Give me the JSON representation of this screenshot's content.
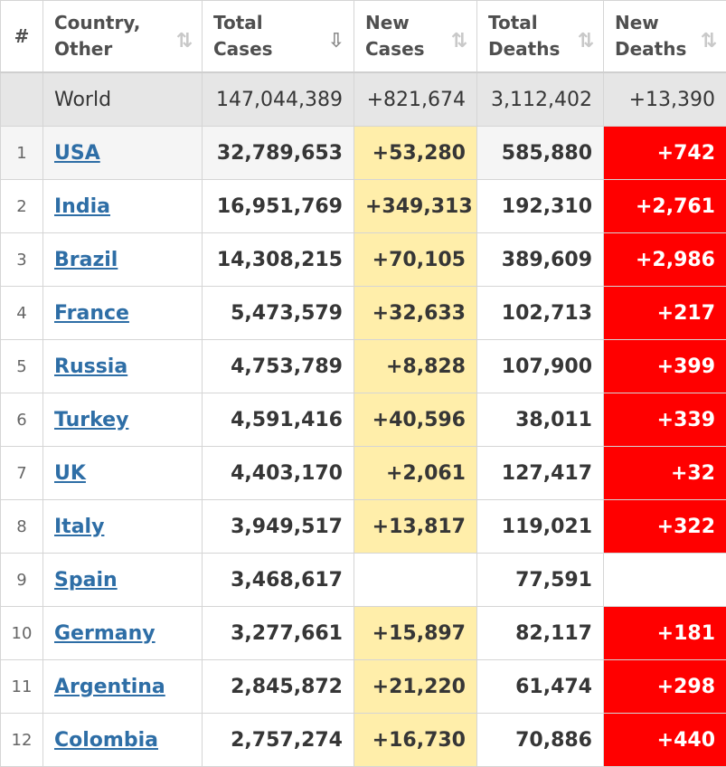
{
  "header": {
    "rank": "#",
    "country": [
      "Country,",
      "Other"
    ],
    "total_cases": [
      "Total",
      "Cases"
    ],
    "new_cases": [
      "New",
      "Cases"
    ],
    "total_deaths": [
      "Total",
      "Deaths"
    ],
    "new_deaths": [
      "New",
      "Deaths"
    ],
    "sort_icon": "⇅",
    "sort_active_icon": "⇩"
  },
  "world": {
    "name": "World",
    "total_cases": "147,044,389",
    "new_cases": "+821,674",
    "total_deaths": "3,112,402",
    "new_deaths": "+13,390"
  },
  "rows": [
    {
      "rank": "1",
      "country": "USA",
      "total_cases": "32,789,653",
      "new_cases": "+53,280",
      "total_deaths": "585,880",
      "new_deaths": "+742"
    },
    {
      "rank": "2",
      "country": "India",
      "total_cases": "16,951,769",
      "new_cases": "+349,313",
      "total_deaths": "192,310",
      "new_deaths": "+2,761"
    },
    {
      "rank": "3",
      "country": "Brazil",
      "total_cases": "14,308,215",
      "new_cases": "+70,105",
      "total_deaths": "389,609",
      "new_deaths": "+2,986"
    },
    {
      "rank": "4",
      "country": "France",
      "total_cases": "5,473,579",
      "new_cases": "+32,633",
      "total_deaths": "102,713",
      "new_deaths": "+217"
    },
    {
      "rank": "5",
      "country": "Russia",
      "total_cases": "4,753,789",
      "new_cases": "+8,828",
      "total_deaths": "107,900",
      "new_deaths": "+399"
    },
    {
      "rank": "6",
      "country": "Turkey",
      "total_cases": "4,591,416",
      "new_cases": "+40,596",
      "total_deaths": "38,011",
      "new_deaths": "+339"
    },
    {
      "rank": "7",
      "country": "UK",
      "total_cases": "4,403,170",
      "new_cases": "+2,061",
      "total_deaths": "127,417",
      "new_deaths": "+32"
    },
    {
      "rank": "8",
      "country": "Italy",
      "total_cases": "3,949,517",
      "new_cases": "+13,817",
      "total_deaths": "119,021",
      "new_deaths": "+322"
    },
    {
      "rank": "9",
      "country": "Spain",
      "total_cases": "3,468,617",
      "new_cases": "",
      "total_deaths": "77,591",
      "new_deaths": ""
    },
    {
      "rank": "10",
      "country": "Germany",
      "total_cases": "3,277,661",
      "new_cases": "+15,897",
      "total_deaths": "82,117",
      "new_deaths": "+181"
    },
    {
      "rank": "11",
      "country": "Argentina",
      "total_cases": "2,845,872",
      "new_cases": "+21,220",
      "total_deaths": "61,474",
      "new_deaths": "+298"
    },
    {
      "rank": "12",
      "country": "Colombia",
      "total_cases": "2,757,274",
      "new_cases": "+16,730",
      "total_deaths": "70,886",
      "new_deaths": "+440"
    }
  ],
  "colors": {
    "new_cases_bg": "#ffeeaa",
    "new_deaths_bg": "#ff0000",
    "link": "#2e6ea6",
    "world_row_bg": "#e6e6e6"
  }
}
